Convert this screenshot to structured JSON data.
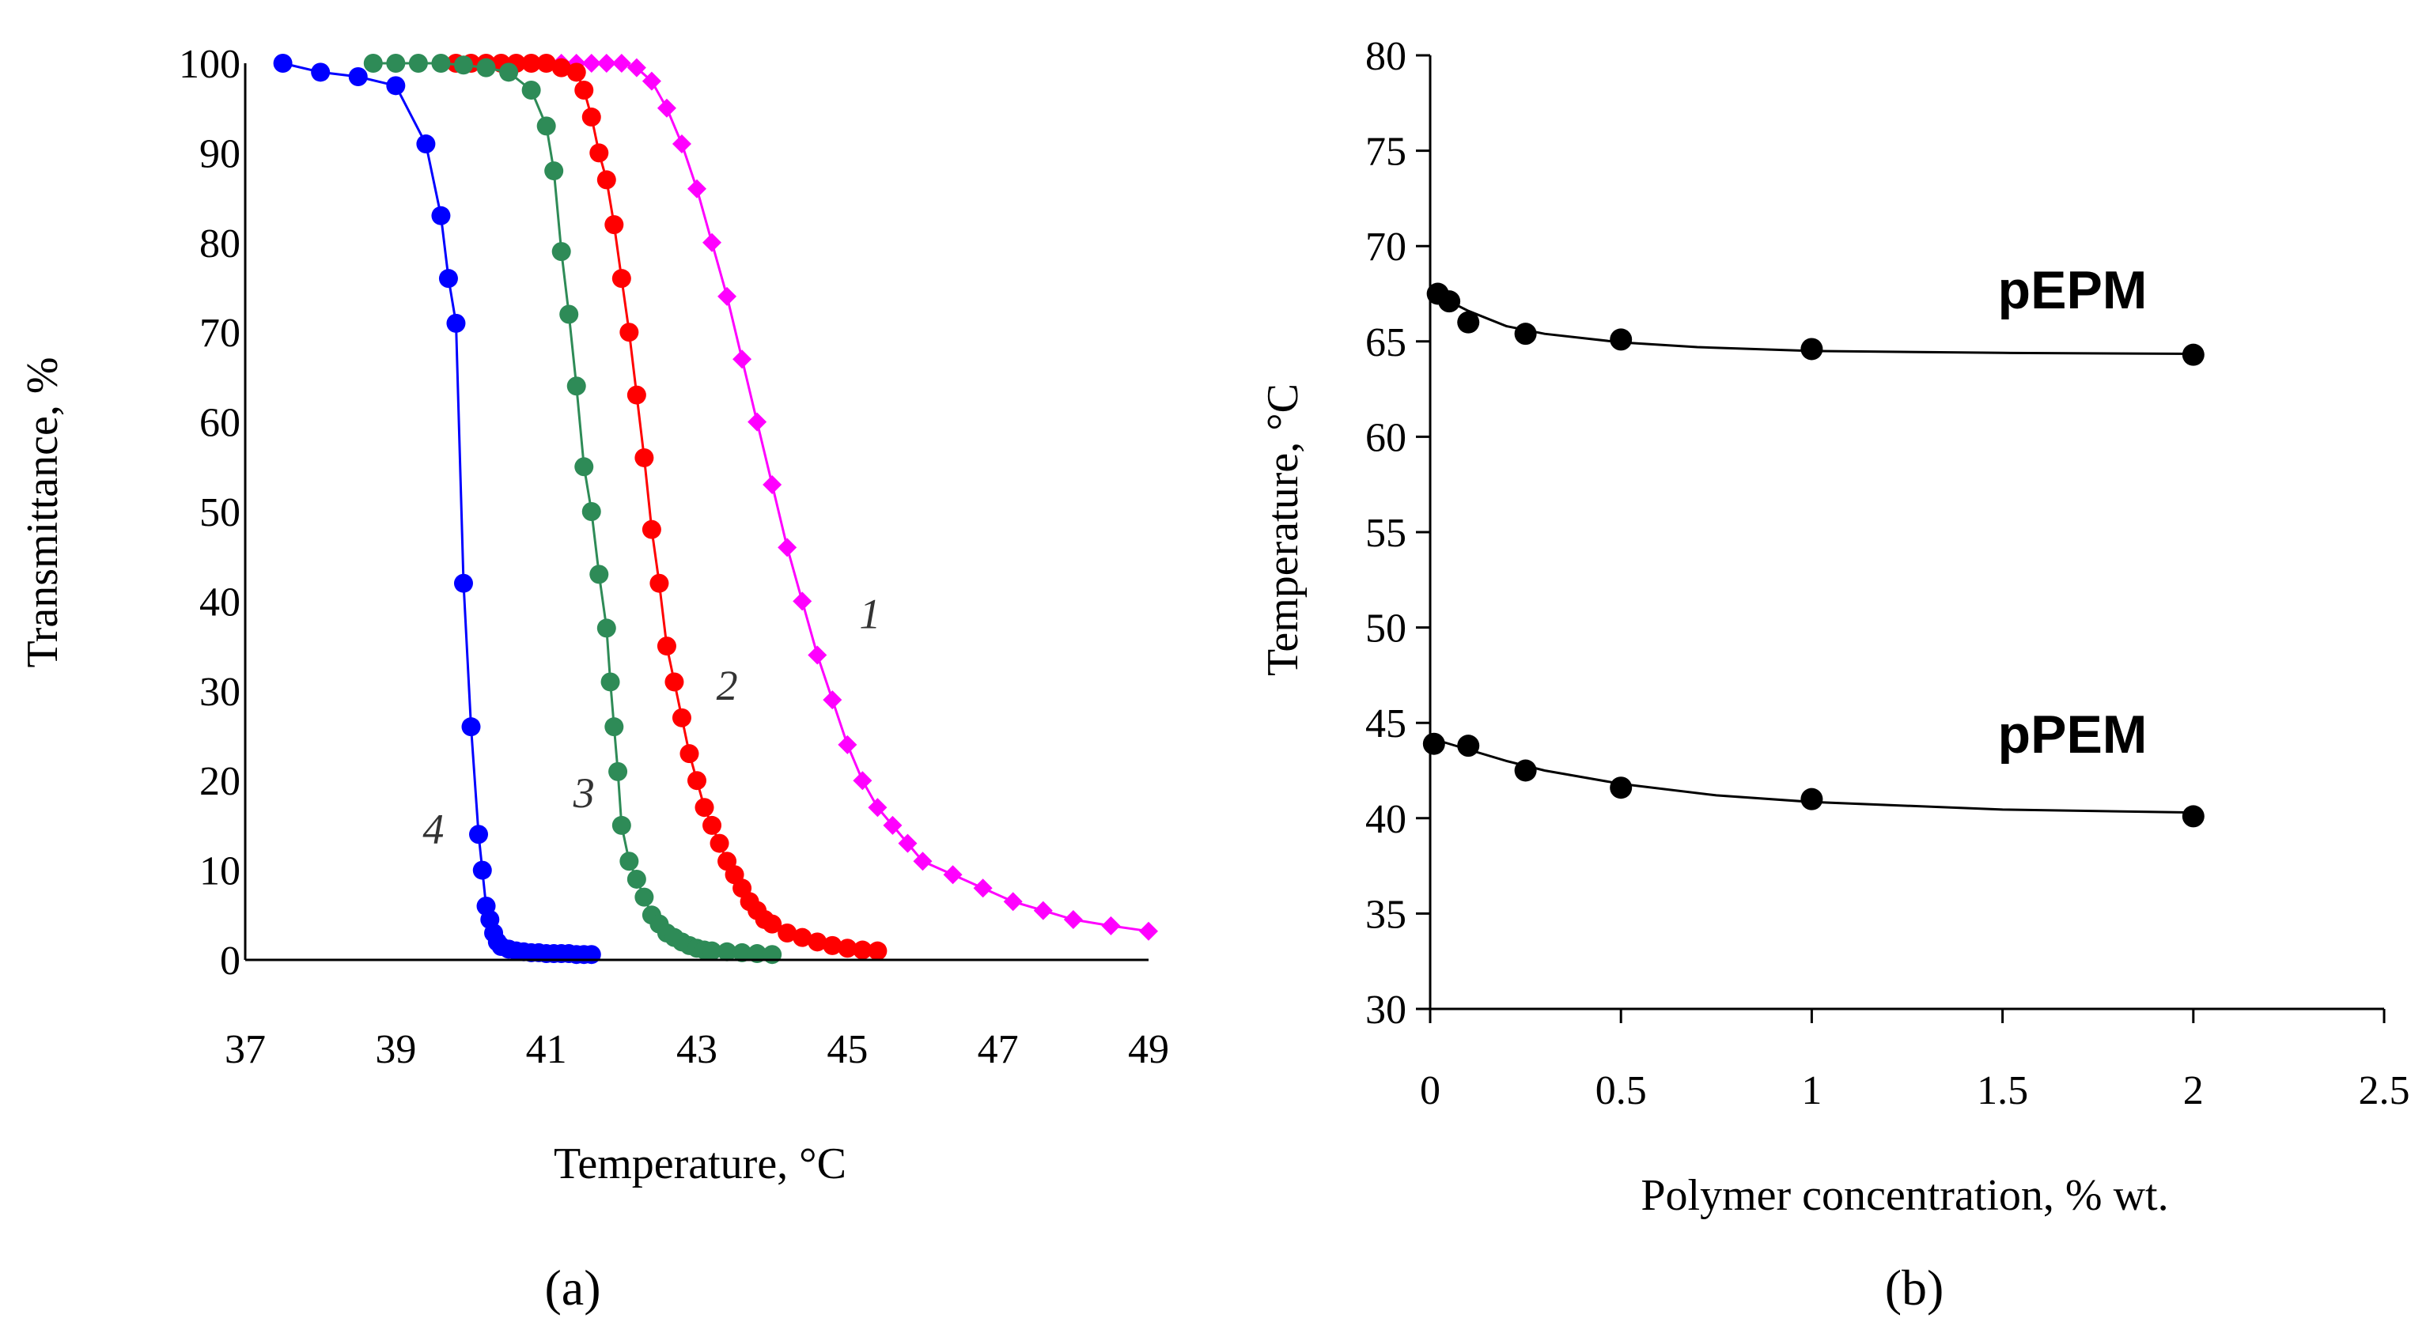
{
  "chart_data": [
    {
      "panel": "a",
      "panel_label": "(a)",
      "type": "scatter",
      "title": "",
      "xlabel": "Temperature, °C",
      "ylabel": "Transmittance, %",
      "xlim": [
        37,
        49
      ],
      "ylim": [
        0,
        100
      ],
      "xticks": [
        37,
        39,
        41,
        43,
        45,
        47,
        49
      ],
      "yticks": [
        0,
        10,
        20,
        30,
        40,
        50,
        60,
        70,
        80,
        90,
        100
      ],
      "grid": false,
      "series": [
        {
          "name": "1",
          "label": "1",
          "color": "#ff00ff",
          "marker": "diamond",
          "x": [
            40.6,
            40.8,
            41.0,
            41.2,
            41.4,
            41.6,
            41.8,
            42.0,
            42.2,
            42.4,
            42.6,
            42.8,
            43.0,
            43.2,
            43.4,
            43.6,
            43.8,
            44.0,
            44.2,
            44.4,
            44.6,
            44.8,
            45.0,
            45.2,
            45.4,
            45.6,
            45.8,
            46.0,
            46.4,
            46.8,
            47.2,
            47.6,
            48.0,
            48.5,
            49.0
          ],
          "y": [
            100,
            100,
            100,
            100,
            100,
            100,
            100,
            100,
            99.5,
            98,
            95,
            91,
            86,
            80,
            74,
            67,
            60,
            53,
            46,
            40,
            34,
            29,
            24,
            20,
            17,
            15,
            13,
            11,
            9.5,
            8,
            6.5,
            5.5,
            4.5,
            3.8,
            3.2
          ]
        },
        {
          "name": "2",
          "label": "2",
          "color": "#ff0000",
          "marker": "circle",
          "x": [
            39.8,
            40.0,
            40.2,
            40.4,
            40.6,
            40.8,
            41.0,
            41.2,
            41.4,
            41.5,
            41.6,
            41.7,
            41.8,
            41.9,
            42.0,
            42.1,
            42.2,
            42.3,
            42.4,
            42.5,
            42.6,
            42.7,
            42.8,
            42.9,
            43.0,
            43.1,
            43.2,
            43.3,
            43.4,
            43.5,
            43.6,
            43.7,
            43.8,
            43.9,
            44.0,
            44.2,
            44.4,
            44.6,
            44.8,
            45.0,
            45.2,
            45.4
          ],
          "y": [
            100,
            100,
            100,
            100,
            100,
            100,
            100,
            99.5,
            99,
            97,
            94,
            90,
            87,
            82,
            76,
            70,
            63,
            56,
            48,
            42,
            35,
            31,
            27,
            23,
            20,
            17,
            15,
            13,
            11,
            9.5,
            8,
            6.5,
            5.5,
            4.5,
            4,
            3,
            2.5,
            2,
            1.6,
            1.3,
            1.1,
            1.0
          ]
        },
        {
          "name": "3",
          "label": "3",
          "color": "#2e8b57",
          "marker": "circle",
          "x": [
            38.7,
            39.0,
            39.3,
            39.6,
            39.9,
            40.2,
            40.5,
            40.8,
            41.0,
            41.1,
            41.2,
            41.3,
            41.4,
            41.5,
            41.6,
            41.7,
            41.8,
            41.85,
            41.9,
            41.95,
            42.0,
            42.1,
            42.2,
            42.3,
            42.4,
            42.5,
            42.6,
            42.7,
            42.8,
            42.9,
            43.0,
            43.1,
            43.2,
            43.4,
            43.6,
            43.8,
            44.0
          ],
          "y": [
            100,
            100,
            100,
            100,
            99.8,
            99.5,
            99,
            97,
            93,
            88,
            79,
            72,
            64,
            55,
            50,
            43,
            37,
            31,
            26,
            21,
            15,
            11,
            9,
            7,
            5,
            4,
            3,
            2.5,
            2,
            1.6,
            1.3,
            1.1,
            1.0,
            0.9,
            0.8,
            0.7,
            0.6
          ]
        },
        {
          "name": "4",
          "label": "4",
          "color": "#0000ff",
          "marker": "circle",
          "x": [
            37.5,
            38.0,
            38.5,
            39.0,
            39.4,
            39.6,
            39.7,
            39.8,
            39.9,
            40.0,
            40.1,
            40.15,
            40.2,
            40.25,
            40.3,
            40.35,
            40.4,
            40.5,
            40.6,
            40.7,
            40.8,
            40.9,
            41.0,
            41.1,
            41.2,
            41.3,
            41.4,
            41.5,
            41.6
          ],
          "y": [
            100,
            99,
            98.5,
            97.5,
            91,
            83,
            76,
            71,
            42,
            26,
            14,
            10,
            6,
            4.5,
            3,
            2,
            1.5,
            1.2,
            1.0,
            0.9,
            0.8,
            0.8,
            0.7,
            0.7,
            0.7,
            0.7,
            0.6,
            0.6,
            0.6
          ]
        }
      ],
      "annotations": [
        {
          "text": "1",
          "x": 45.3,
          "y": 37
        },
        {
          "text": "2",
          "x": 43.4,
          "y": 29
        },
        {
          "text": "3",
          "x": 41.5,
          "y": 17
        },
        {
          "text": "4",
          "x": 39.5,
          "y": 13
        }
      ]
    },
    {
      "panel": "b",
      "panel_label": "(b)",
      "type": "scatter",
      "title": "",
      "xlabel": "Polymer concentration, % wt.",
      "ylabel": "Temperature, °C",
      "xlim": [
        0,
        2.5
      ],
      "ylim": [
        30,
        80
      ],
      "xticks": [
        0,
        0.5,
        1,
        1.5,
        2,
        2.5
      ],
      "xtick_labels": [
        "0",
        "0.5",
        "1",
        "1.5",
        "2",
        "2.5"
      ],
      "yticks": [
        30,
        35,
        40,
        45,
        50,
        55,
        60,
        65,
        70,
        75,
        80
      ],
      "grid": false,
      "series": [
        {
          "name": "pEPM",
          "label": "pEPM",
          "color": "#000000",
          "marker": "circle",
          "x": [
            0.02,
            0.05,
            0.1,
            0.25,
            0.5,
            1,
            2
          ],
          "y": [
            67.5,
            67.1,
            66.0,
            65.4,
            65.1,
            64.6,
            64.3
          ],
          "fit": [
            [
              0,
              67.7
            ],
            [
              0.05,
              67.1
            ],
            [
              0.1,
              66.6
            ],
            [
              0.2,
              65.8
            ],
            [
              0.3,
              65.4
            ],
            [
              0.5,
              64.95
            ],
            [
              0.7,
              64.7
            ],
            [
              1,
              64.5
            ],
            [
              1.5,
              64.4
            ],
            [
              2,
              64.35
            ]
          ]
        },
        {
          "name": "pPEM",
          "label": "pPEM",
          "color": "#000000",
          "marker": "circle",
          "x": [
            0.01,
            0.1,
            0.25,
            0.5,
            1,
            2
          ],
          "y": [
            43.9,
            43.8,
            42.5,
            41.6,
            41.0,
            40.1
          ],
          "fit": [
            [
              0,
              44.2
            ],
            [
              0.1,
              43.6
            ],
            [
              0.2,
              43.0
            ],
            [
              0.3,
              42.5
            ],
            [
              0.5,
              41.8
            ],
            [
              0.75,
              41.2
            ],
            [
              1,
              40.85
            ],
            [
              1.5,
              40.45
            ],
            [
              2,
              40.3
            ]
          ]
        }
      ]
    }
  ]
}
